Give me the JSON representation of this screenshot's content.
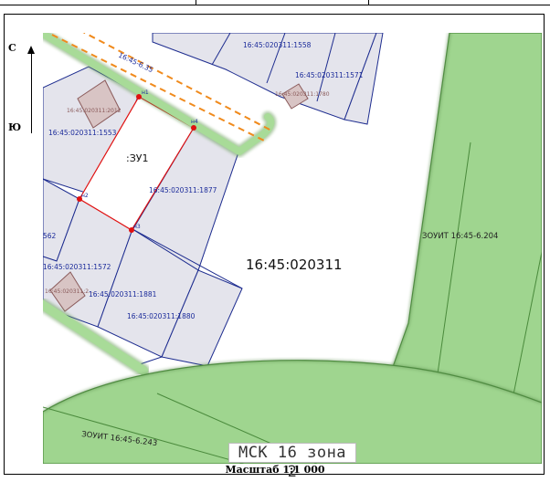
{
  "compass": {
    "north": "С",
    "south": "Ю"
  },
  "map": {
    "parcels": {
      "p1558": "16:45:020311:1558",
      "p1571": "16:45:020311:1571",
      "p1780": "16:45:020311:1780",
      "p2012": "16:45:020311:2012",
      "p1553": "16:45:020311:1553",
      "p1877": "16:45:020311:1877",
      "p562": "562",
      "p1572": "16:45:020311:1572",
      "p2xx": "16:45:020311:2...",
      "p1881": "16:45:020311:1881",
      "p1880": "16:45:020311:1880"
    },
    "new_parcel": ":ЗУ1",
    "quarter": "16:45:020311",
    "road_zone": "16:45-6.35",
    "zone_right": "ЗОУИТ 16:45-6.204",
    "zone_bottom": "ЗОУИТ 16:45-6.243",
    "points": {
      "n1": "н1",
      "n2": "н2",
      "n3": "н3",
      "n4": "н4"
    },
    "colors": {
      "zone_fill": "#9fd58f",
      "zone_stroke": "#4a8a3c",
      "parcel_fill": "#e4e4ec",
      "parcel_stroke": "#1d2c8f",
      "building_fill": "#d8c4c4",
      "building_stroke": "#8a5a5a",
      "boundary_red": "#e01010",
      "road_dash": "#f08a1c",
      "label_blue": "#1a2a9a"
    }
  },
  "projection": "МСК 16 зона 2",
  "scale": "Масштаб 1:1 000"
}
